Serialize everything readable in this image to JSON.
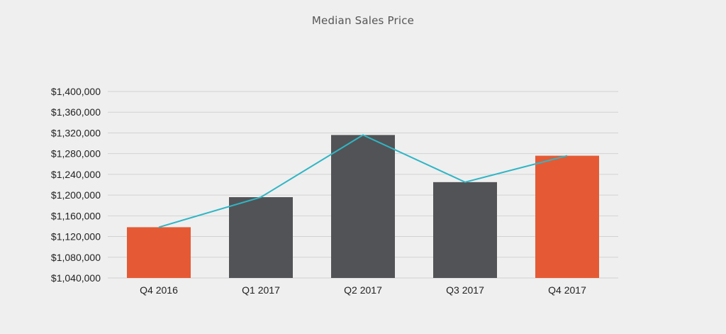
{
  "chart_data": {
    "type": "bar",
    "title": "Median Sales Price",
    "xlabel": "",
    "ylabel": "",
    "categories": [
      "Q4 2016",
      "Q1 2017",
      "Q2 2017",
      "Q3 2017",
      "Q4 2017"
    ],
    "series": [
      {
        "type": "bar",
        "values": [
          1138000,
          1196000,
          1316000,
          1225000,
          1276000
        ]
      },
      {
        "type": "line",
        "values": [
          1138000,
          1196000,
          1316000,
          1225000,
          1276000
        ]
      }
    ],
    "ylim": [
      1040000,
      1400000
    ],
    "y_ticks": [
      1040000,
      1080000,
      1120000,
      1160000,
      1200000,
      1240000,
      1280000,
      1320000,
      1360000,
      1400000
    ],
    "y_tick_labels": [
      "$1,040,000",
      "$1,080,000",
      "$1,120,000",
      "$1,160,000",
      "$1,200,000",
      "$1,240,000",
      "$1,280,000",
      "$1,320,000",
      "$1,360,000",
      "$1,400,000"
    ],
    "grid": true,
    "legend": "none",
    "colors": {
      "highlight_bar": "#e55a34",
      "bar": "#525356",
      "line": "#2fb6c5",
      "grid": "#d2d2d2",
      "background": "#efefef"
    },
    "highlighted_categories": [
      "Q4 2016",
      "Q4 2017"
    ]
  }
}
